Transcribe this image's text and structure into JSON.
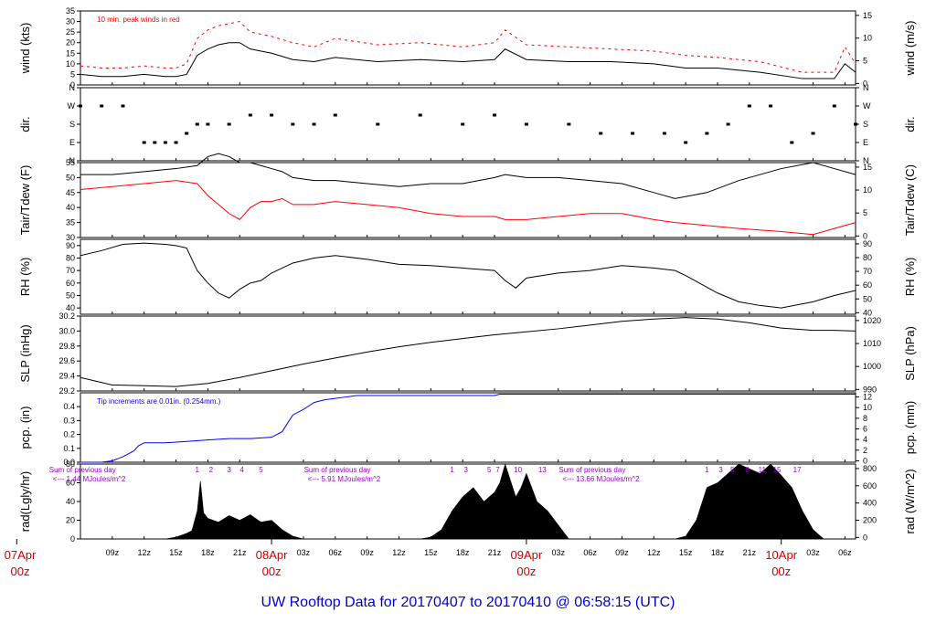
{
  "title": "UW Rooftop Data for 20170407  to  20170410 @ 06:58:15  (UTC)",
  "colors": {
    "axis": "#000000",
    "primary": "#000000",
    "secondary": "#ff0000",
    "precip": "#0000ff",
    "annotation": "#9900cc",
    "day_label": "#cc0000",
    "title": "#0000cc"
  },
  "time_axis": {
    "range_hours": [
      6,
      79
    ],
    "tick_labels": [
      {
        "x": 9,
        "label": "09z"
      },
      {
        "x": 12,
        "label": "12z"
      },
      {
        "x": 15,
        "label": "15z"
      },
      {
        "x": 18,
        "label": "18z"
      },
      {
        "x": 21,
        "label": "21z"
      },
      {
        "x": 27,
        "label": "03z"
      },
      {
        "x": 30,
        "label": "06z"
      },
      {
        "x": 33,
        "label": "09z"
      },
      {
        "x": 36,
        "label": "12z"
      },
      {
        "x": 39,
        "label": "15z"
      },
      {
        "x": 42,
        "label": "18z"
      },
      {
        "x": 45,
        "label": "21z"
      },
      {
        "x": 51,
        "label": "03z"
      },
      {
        "x": 54,
        "label": "06z"
      },
      {
        "x": 57,
        "label": "09z"
      },
      {
        "x": 60,
        "label": "12z"
      },
      {
        "x": 63,
        "label": "15z"
      },
      {
        "x": 66,
        "label": "18z"
      },
      {
        "x": 69,
        "label": "21z"
      },
      {
        "x": 75,
        "label": "03z"
      },
      {
        "x": 78,
        "label": "06z"
      }
    ],
    "day_labels": [
      {
        "x": 0,
        "top": "07Apr",
        "bottom": "00z"
      },
      {
        "x": 24,
        "top": "08Apr",
        "bottom": "00z"
      },
      {
        "x": 48,
        "top": "09Apr",
        "bottom": "00z"
      },
      {
        "x": 72,
        "top": "10Apr",
        "bottom": "00z"
      }
    ]
  },
  "chart_data": [
    {
      "type": "line",
      "panel": "wind",
      "ylabel_left": "wind (kts)",
      "ylabel_right": "wind (m/s)",
      "ylim": [
        0,
        35
      ],
      "yticks_left": [
        "0",
        "5",
        "10",
        "15",
        "20",
        "25",
        "30",
        "35"
      ],
      "yticks_right": [
        "0",
        "5",
        "10",
        "15"
      ],
      "annotation": "10 min. peak winds in red",
      "series": [
        {
          "color": "#000000",
          "x": [
            6,
            8,
            10,
            12,
            14,
            15,
            16,
            17,
            18,
            19,
            20,
            21,
            22,
            24,
            26,
            28,
            30,
            34,
            38,
            42,
            45,
            46,
            48,
            52,
            56,
            60,
            63,
            66,
            70,
            74,
            77,
            78,
            79
          ],
          "y": [
            5,
            4,
            4,
            5,
            4,
            4,
            5,
            14,
            17,
            19,
            20,
            20,
            17,
            15,
            12,
            11,
            13,
            11,
            12,
            11,
            12,
            17,
            12,
            11,
            11,
            10,
            8,
            8,
            6,
            3,
            3,
            10,
            6
          ]
        },
        {
          "color": "#ff0000",
          "style": "dash",
          "x": [
            6,
            8,
            10,
            12,
            14,
            15,
            16,
            17,
            18,
            19,
            20,
            21,
            22,
            24,
            26,
            28,
            30,
            34,
            38,
            42,
            45,
            46,
            48,
            52,
            56,
            60,
            63,
            66,
            70,
            74,
            77,
            78,
            79
          ],
          "y": [
            9,
            8,
            8,
            9,
            8,
            8,
            10,
            22,
            26,
            28,
            29,
            30,
            25,
            23,
            20,
            18,
            22,
            19,
            20,
            18,
            20,
            26,
            19,
            18,
            17,
            16,
            14,
            13,
            11,
            6,
            6,
            18,
            10
          ]
        }
      ]
    },
    {
      "type": "scatter",
      "panel": "dir",
      "ylabel_left": "dir.",
      "ylabel_right": "dir.",
      "yticks_left": [
        "N",
        "E",
        "S",
        "W",
        "N"
      ],
      "yticks_right": [
        "N",
        "E",
        "S",
        "W",
        "N"
      ],
      "series": [
        {
          "color": "#000000",
          "x": [
            6,
            8,
            10,
            12,
            13,
            14,
            15,
            16,
            17,
            18,
            20,
            22,
            24,
            26,
            28,
            30,
            34,
            38,
            42,
            45,
            48,
            52,
            55,
            58,
            61,
            63,
            65,
            67,
            69,
            71,
            73,
            75,
            77,
            79
          ],
          "y": [
            "W",
            "W",
            "W",
            "E",
            "E",
            "E",
            "E",
            "SE",
            "S",
            "S",
            "S",
            "SW",
            "SW",
            "S",
            "S",
            "SW",
            "S",
            "SW",
            "S",
            "SW",
            "S",
            "S",
            "SE",
            "SE",
            "SE",
            "E",
            "SE",
            "S",
            "W",
            "W",
            "E",
            "SE",
            "W",
            "S"
          ]
        }
      ]
    },
    {
      "type": "line",
      "panel": "temperature",
      "ylabel_left": "Tair/Tdew (F)",
      "ylabel_right": "Tair/Tdew (C)",
      "ylim": [
        30,
        55
      ],
      "yticks_left": [
        "30",
        "35",
        "40",
        "45",
        "50",
        "55"
      ],
      "yticks_right": [
        "0",
        "5",
        "10",
        "15"
      ],
      "series": [
        {
          "color": "#000000",
          "x": [
            6,
            9,
            12,
            15,
            17,
            18,
            19,
            20,
            21,
            22,
            23,
            24,
            25,
            26,
            28,
            30,
            33,
            36,
            39,
            42,
            45,
            46,
            48,
            51,
            54,
            57,
            60,
            62,
            65,
            68,
            72,
            75,
            77,
            79
          ],
          "y": [
            51,
            51,
            52,
            53,
            54,
            57,
            58,
            57,
            55,
            55,
            54,
            53,
            52,
            50,
            49,
            49,
            48,
            47,
            48,
            48,
            50,
            51,
            50,
            50,
            49,
            48,
            45,
            43,
            45,
            49,
            53,
            55,
            53,
            51
          ]
        },
        {
          "color": "#ff0000",
          "x": [
            6,
            9,
            12,
            15,
            17,
            18,
            19,
            20,
            21,
            22,
            23,
            24,
            25,
            26,
            28,
            30,
            33,
            36,
            39,
            42,
            45,
            46,
            48,
            51,
            54,
            57,
            60,
            62,
            65,
            68,
            72,
            75,
            77,
            79
          ],
          "y": [
            46,
            47,
            48,
            49,
            48,
            44,
            41,
            38,
            36,
            40,
            42,
            42,
            43,
            41,
            41,
            42,
            41,
            40,
            38,
            37,
            37,
            36,
            36,
            37,
            38,
            38,
            36,
            35,
            34,
            33,
            32,
            31,
            33,
            35
          ]
        }
      ]
    },
    {
      "type": "line",
      "panel": "rh",
      "ylabel_left": "RH (%)",
      "ylabel_right": "RH (%)",
      "ylim": [
        35,
        95
      ],
      "yticks_left": [
        "40",
        "50",
        "60",
        "70",
        "80",
        "90"
      ],
      "yticks_right": [
        "40",
        "50",
        "60",
        "70",
        "80",
        "90"
      ],
      "series": [
        {
          "color": "#000000",
          "x": [
            6,
            8,
            10,
            12,
            14,
            15,
            16,
            17,
            18,
            19,
            20,
            21,
            22,
            23,
            24,
            25,
            26,
            28,
            30,
            33,
            36,
            39,
            42,
            45,
            46,
            47,
            48,
            51,
            54,
            57,
            60,
            62,
            63,
            66,
            68,
            70,
            72,
            75,
            77,
            79
          ],
          "y": [
            82,
            86,
            91,
            92,
            91,
            90,
            88,
            70,
            60,
            52,
            48,
            55,
            60,
            62,
            68,
            72,
            76,
            80,
            82,
            79,
            75,
            74,
            72,
            70,
            62,
            56,
            64,
            68,
            70,
            74,
            72,
            70,
            66,
            52,
            45,
            42,
            40,
            45,
            50,
            54
          ]
        }
      ]
    },
    {
      "type": "line",
      "panel": "slp",
      "ylabel_left": "SLP (inHg)",
      "ylabel_right": "SLP (hPa)",
      "ylim": [
        29.2,
        30.2
      ],
      "yticks_left": [
        "29.2",
        "29.4",
        "29.6",
        "29.8",
        "30.0",
        "30.2"
      ],
      "yticks_right": [
        "990",
        "1000",
        "1010",
        "1020"
      ],
      "series": [
        {
          "color": "#000000",
          "x": [
            6,
            9,
            12,
            15,
            18,
            21,
            24,
            27,
            30,
            33,
            36,
            39,
            42,
            45,
            48,
            51,
            54,
            57,
            60,
            63,
            66,
            69,
            72,
            75,
            77,
            79
          ],
          "y": [
            29.38,
            29.28,
            29.27,
            29.26,
            29.3,
            29.38,
            29.47,
            29.56,
            29.64,
            29.72,
            29.79,
            29.85,
            29.9,
            29.95,
            29.99,
            30.03,
            30.08,
            30.13,
            30.16,
            30.18,
            30.16,
            30.11,
            30.04,
            30.01,
            30.01,
            30.0
          ]
        }
      ]
    },
    {
      "type": "line",
      "panel": "precip",
      "ylabel_left": "pcp. (in)",
      "ylabel_right": "pcp. (mm)",
      "ylim": [
        0,
        0.5
      ],
      "yticks_left": [
        "0.0",
        "0.1",
        "0.2",
        "0.3",
        "0.4"
      ],
      "yticks_right": [
        "0",
        "2",
        "4",
        "6",
        "8",
        "10",
        "12"
      ],
      "annotation": "Tip increments are 0.01in. (0.254mm.)",
      "series": [
        {
          "color": "#0000ff",
          "x": [
            6,
            8,
            9,
            10,
            11,
            11.5,
            12,
            14,
            16,
            18,
            20,
            22,
            24,
            25,
            25.5,
            26,
            27,
            28,
            29,
            30,
            31,
            32,
            33,
            36,
            39,
            42,
            45,
            45.5,
            48,
            55,
            60,
            66,
            72,
            79
          ],
          "y": [
            0,
            0,
            0.01,
            0.04,
            0.08,
            0.12,
            0.14,
            0.14,
            0.15,
            0.16,
            0.17,
            0.17,
            0.18,
            0.22,
            0.28,
            0.34,
            0.38,
            0.43,
            0.45,
            0.46,
            0.47,
            0.48,
            0.48,
            0.48,
            0.48,
            0.48,
            0.48,
            0.49,
            0.49,
            0.49,
            0.49,
            0.49,
            0.49,
            0.49
          ]
        }
      ]
    },
    {
      "type": "area",
      "panel": "radiation",
      "ylabel_left": "rad(Lgly/hr)",
      "ylabel_right": "rad (W/m^2)",
      "ylim": [
        0,
        80
      ],
      "yticks_left": [
        "0",
        "20",
        "40",
        "60",
        "80"
      ],
      "yticks_right": [
        "0",
        "200",
        "400",
        "600",
        "800"
      ],
      "annotations": [
        {
          "text": "Sum of previous day",
          "x": 6.5
        },
        {
          "text": "<--- 1.44 MJoules/m^2",
          "x": 6.5
        },
        {
          "text": "Sum of previous day",
          "x": 30.5
        },
        {
          "text": "<--- 5.91 MJoules/m^2",
          "x": 30.5
        },
        {
          "text": "Sum of previous day",
          "x": 54.5
        },
        {
          "text": "<--- 13.66 MJoules/m^2",
          "x": 54.5
        }
      ],
      "hour_marks": [
        {
          "x": 17,
          "label": "1"
        },
        {
          "x": 18.3,
          "label": "2"
        },
        {
          "x": 20,
          "label": "3"
        },
        {
          "x": 21.2,
          "label": "4"
        },
        {
          "x": 23,
          "label": "5"
        },
        {
          "x": 41,
          "label": "1"
        },
        {
          "x": 42.3,
          "label": "3"
        },
        {
          "x": 44.5,
          "label": "5"
        },
        {
          "x": 45.3,
          "label": "7"
        },
        {
          "x": 47.2,
          "label": "10"
        },
        {
          "x": 49.5,
          "label": "13"
        },
        {
          "x": 65,
          "label": "1"
        },
        {
          "x": 66.3,
          "label": "3"
        },
        {
          "x": 67.4,
          "label": "5"
        },
        {
          "x": 68.8,
          "label": "8"
        },
        {
          "x": 70.2,
          "label": "11"
        },
        {
          "x": 71.6,
          "label": "15"
        },
        {
          "x": 73.5,
          "label": "17"
        }
      ],
      "series": [
        {
          "color": "#000000",
          "x": [
            14,
            15,
            16,
            16.5,
            17,
            17.3,
            17.6,
            18,
            19,
            20,
            21,
            22,
            23,
            24,
            25,
            26,
            27,
            38,
            39,
            40,
            41,
            42,
            43,
            44,
            45,
            45.5,
            46,
            47,
            47.5,
            48,
            49,
            50,
            51,
            52,
            62,
            63,
            64,
            65,
            66,
            67,
            68,
            69,
            70,
            71,
            72,
            73,
            74,
            75,
            76
          ],
          "y": [
            0,
            2,
            6,
            9,
            30,
            62,
            28,
            22,
            18,
            25,
            20,
            26,
            18,
            20,
            10,
            3,
            0,
            0,
            2,
            10,
            30,
            45,
            55,
            40,
            50,
            60,
            80,
            45,
            55,
            70,
            40,
            30,
            15,
            0,
            0,
            3,
            20,
            55,
            60,
            70,
            85,
            75,
            70,
            80,
            68,
            55,
            30,
            10,
            0
          ]
        }
      ]
    }
  ]
}
